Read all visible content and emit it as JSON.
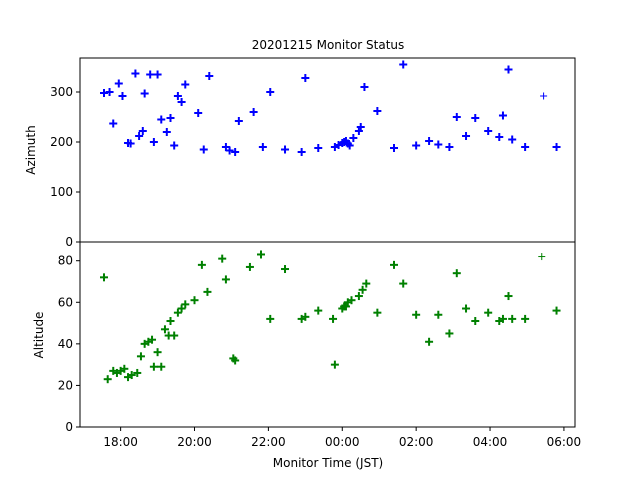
{
  "chart_data": {
    "type": "scatter",
    "title": "20201215 Monitor Status",
    "xlabel": "Monitor Time (JST)",
    "xlim_hours": [
      16.9,
      30.3
    ],
    "xticks": [
      {
        "label": "18:00",
        "hour": 18
      },
      {
        "label": "20:00",
        "hour": 20
      },
      {
        "label": "22:00",
        "hour": 22
      },
      {
        "label": "00:00",
        "hour": 24
      },
      {
        "label": "02:00",
        "hour": 26
      },
      {
        "label": "04:00",
        "hour": 28
      },
      {
        "label": "06:00",
        "hour": 30
      }
    ],
    "panels": [
      {
        "name": "azimuth",
        "ylabel": "Azimuth",
        "ylim": [
          0,
          368
        ],
        "yticks": [
          0,
          100,
          200,
          300
        ],
        "color": "#0000ff",
        "x": [
          17.55,
          17.7,
          17.8,
          17.95,
          18.05,
          18.2,
          18.27,
          18.4,
          18.5,
          18.6,
          18.65,
          18.8,
          18.9,
          19.0,
          19.1,
          19.25,
          19.35,
          19.45,
          19.55,
          19.65,
          19.75,
          20.1,
          20.25,
          20.4,
          20.85,
          20.95,
          21.1,
          21.2,
          21.6,
          21.85,
          22.05,
          22.45,
          22.9,
          23.0,
          23.35,
          23.8,
          23.9,
          24.0,
          24.05,
          24.1,
          24.15,
          24.2,
          24.3,
          24.45,
          24.5,
          24.6,
          24.95,
          25.4,
          25.65,
          26.0,
          26.35,
          26.6,
          26.9,
          27.1,
          27.35,
          27.6,
          27.95,
          28.25,
          28.35,
          28.5,
          28.6,
          28.95,
          29.45,
          29.8
        ],
        "y": [
          298,
          300,
          237,
          317,
          292,
          198,
          197,
          337,
          212,
          222,
          297,
          335,
          200,
          335,
          245,
          220,
          248,
          193,
          292,
          280,
          315,
          258,
          185,
          332,
          190,
          183,
          180,
          242,
          260,
          190,
          300,
          185,
          180,
          328,
          188,
          190,
          194,
          198,
          200,
          202,
          197,
          193,
          208,
          222,
          230,
          310,
          262,
          188,
          355,
          193,
          202,
          195,
          190,
          250,
          212,
          248,
          222,
          210,
          253,
          345,
          205,
          190,
          292,
          190
        ],
        "emphasis": [
          false,
          false,
          false,
          false,
          false,
          false,
          false,
          false,
          false,
          false,
          false,
          false,
          false,
          false,
          false,
          false,
          false,
          false,
          false,
          false,
          false,
          false,
          false,
          false,
          false,
          false,
          false,
          false,
          false,
          false,
          false,
          false,
          false,
          false,
          false,
          false,
          false,
          false,
          false,
          false,
          false,
          false,
          false,
          false,
          false,
          false,
          false,
          false,
          false,
          false,
          false,
          false,
          false,
          false,
          false,
          false,
          false,
          false,
          false,
          false,
          false,
          false,
          true,
          false
        ]
      },
      {
        "name": "altitude",
        "ylabel": "Altitude",
        "ylim": [
          0,
          89
        ],
        "yticks": [
          0,
          20,
          40,
          60,
          80
        ],
        "color": "#008000",
        "x": [
          17.55,
          17.65,
          17.8,
          17.9,
          18.0,
          18.1,
          18.2,
          18.3,
          18.45,
          18.55,
          18.65,
          18.75,
          18.85,
          18.9,
          19.0,
          19.1,
          19.2,
          19.3,
          19.35,
          19.45,
          19.55,
          19.65,
          19.75,
          20.0,
          20.2,
          20.35,
          20.75,
          20.85,
          21.05,
          21.1,
          21.5,
          21.8,
          22.05,
          22.45,
          22.9,
          23.0,
          23.35,
          23.75,
          23.8,
          24.0,
          24.05,
          24.1,
          24.15,
          24.25,
          24.45,
          24.55,
          24.65,
          24.95,
          25.4,
          25.65,
          26.0,
          26.35,
          26.6,
          26.9,
          27.1,
          27.35,
          27.6,
          27.95,
          28.25,
          28.35,
          28.5,
          28.6,
          28.95,
          29.4,
          29.8
        ],
        "y": [
          72,
          23,
          27,
          26,
          27,
          28,
          24,
          25,
          26,
          34,
          40,
          41,
          42,
          29,
          36,
          29,
          47,
          44,
          51,
          44,
          55,
          57,
          59,
          61,
          78,
          65,
          81,
          71,
          33,
          32,
          77,
          83,
          52,
          76,
          52,
          53,
          56,
          52,
          30,
          57,
          58,
          58,
          60,
          61,
          63,
          66,
          69,
          55,
          78,
          69,
          54,
          41,
          54,
          45,
          74,
          57,
          51,
          55,
          51,
          52,
          63,
          52,
          52,
          82,
          56
        ],
        "emphasis": [
          false,
          false,
          false,
          false,
          false,
          false,
          false,
          false,
          false,
          false,
          false,
          false,
          false,
          false,
          false,
          false,
          false,
          false,
          false,
          false,
          false,
          false,
          false,
          false,
          false,
          false,
          false,
          false,
          false,
          false,
          false,
          false,
          false,
          false,
          false,
          false,
          false,
          false,
          false,
          false,
          false,
          false,
          false,
          false,
          false,
          false,
          false,
          false,
          false,
          false,
          false,
          false,
          false,
          false,
          false,
          false,
          false,
          false,
          false,
          false,
          false,
          false,
          false,
          true,
          false
        ]
      }
    ]
  }
}
